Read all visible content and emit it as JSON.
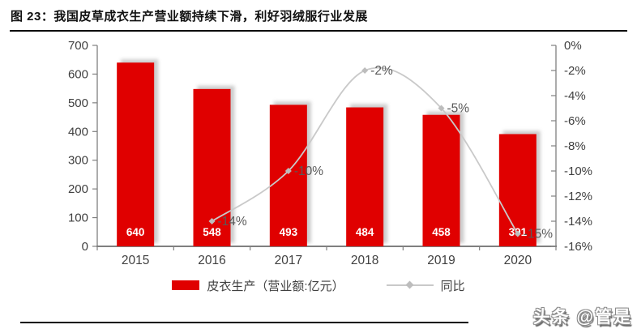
{
  "header": {
    "title": "图 23：我国皮草成衣生产营业额持续下滑，利好羽绒服行业发展"
  },
  "watermark": "头条 @管是",
  "legend": [
    {
      "label": "皮衣生产（营业额:亿元）",
      "swatch": "bar"
    },
    {
      "label": "同比",
      "swatch": "line"
    }
  ],
  "chart_data": {
    "type": "combo-bar-line",
    "title": "图 23：我国皮草成衣生产营业额持续下滑，利好羽绒服行业发展",
    "categories": [
      "2015",
      "2016",
      "2017",
      "2018",
      "2019",
      "2020"
    ],
    "series": [
      {
        "name": "皮衣生产（营业额:亿元）",
        "type": "bar",
        "axis": "left",
        "values": [
          640,
          548,
          493,
          484,
          458,
          391
        ],
        "data_labels": [
          "640",
          "548",
          "493",
          "484",
          "458",
          "391"
        ],
        "color": "#e00000",
        "data_label_color": "#ffffff"
      },
      {
        "name": "同比",
        "type": "line",
        "axis": "right",
        "values": [
          null,
          -14,
          -10,
          -2,
          -5,
          -15
        ],
        "data_labels": [
          null,
          "-14%",
          "-10%",
          "-2%",
          "-5%",
          "-15%"
        ],
        "color": "#c9c9c9",
        "marker_color": "#bdbdbd",
        "data_label_color": "#595959"
      }
    ],
    "left_axis": {
      "min": 0,
      "max": 700,
      "step": 100,
      "ticks": [
        "0",
        "100",
        "200",
        "300",
        "400",
        "500",
        "600",
        "700"
      ]
    },
    "right_axis": {
      "min": -16,
      "max": 0,
      "step": -2,
      "ticks": [
        "0%",
        "-2%",
        "-4%",
        "-6%",
        "-8%",
        "-10%",
        "-12%",
        "-14%",
        "-16%"
      ]
    },
    "grid": false,
    "legend_position": "bottom",
    "axis_line_color": "#808080",
    "axis_text_color": "#404040"
  }
}
